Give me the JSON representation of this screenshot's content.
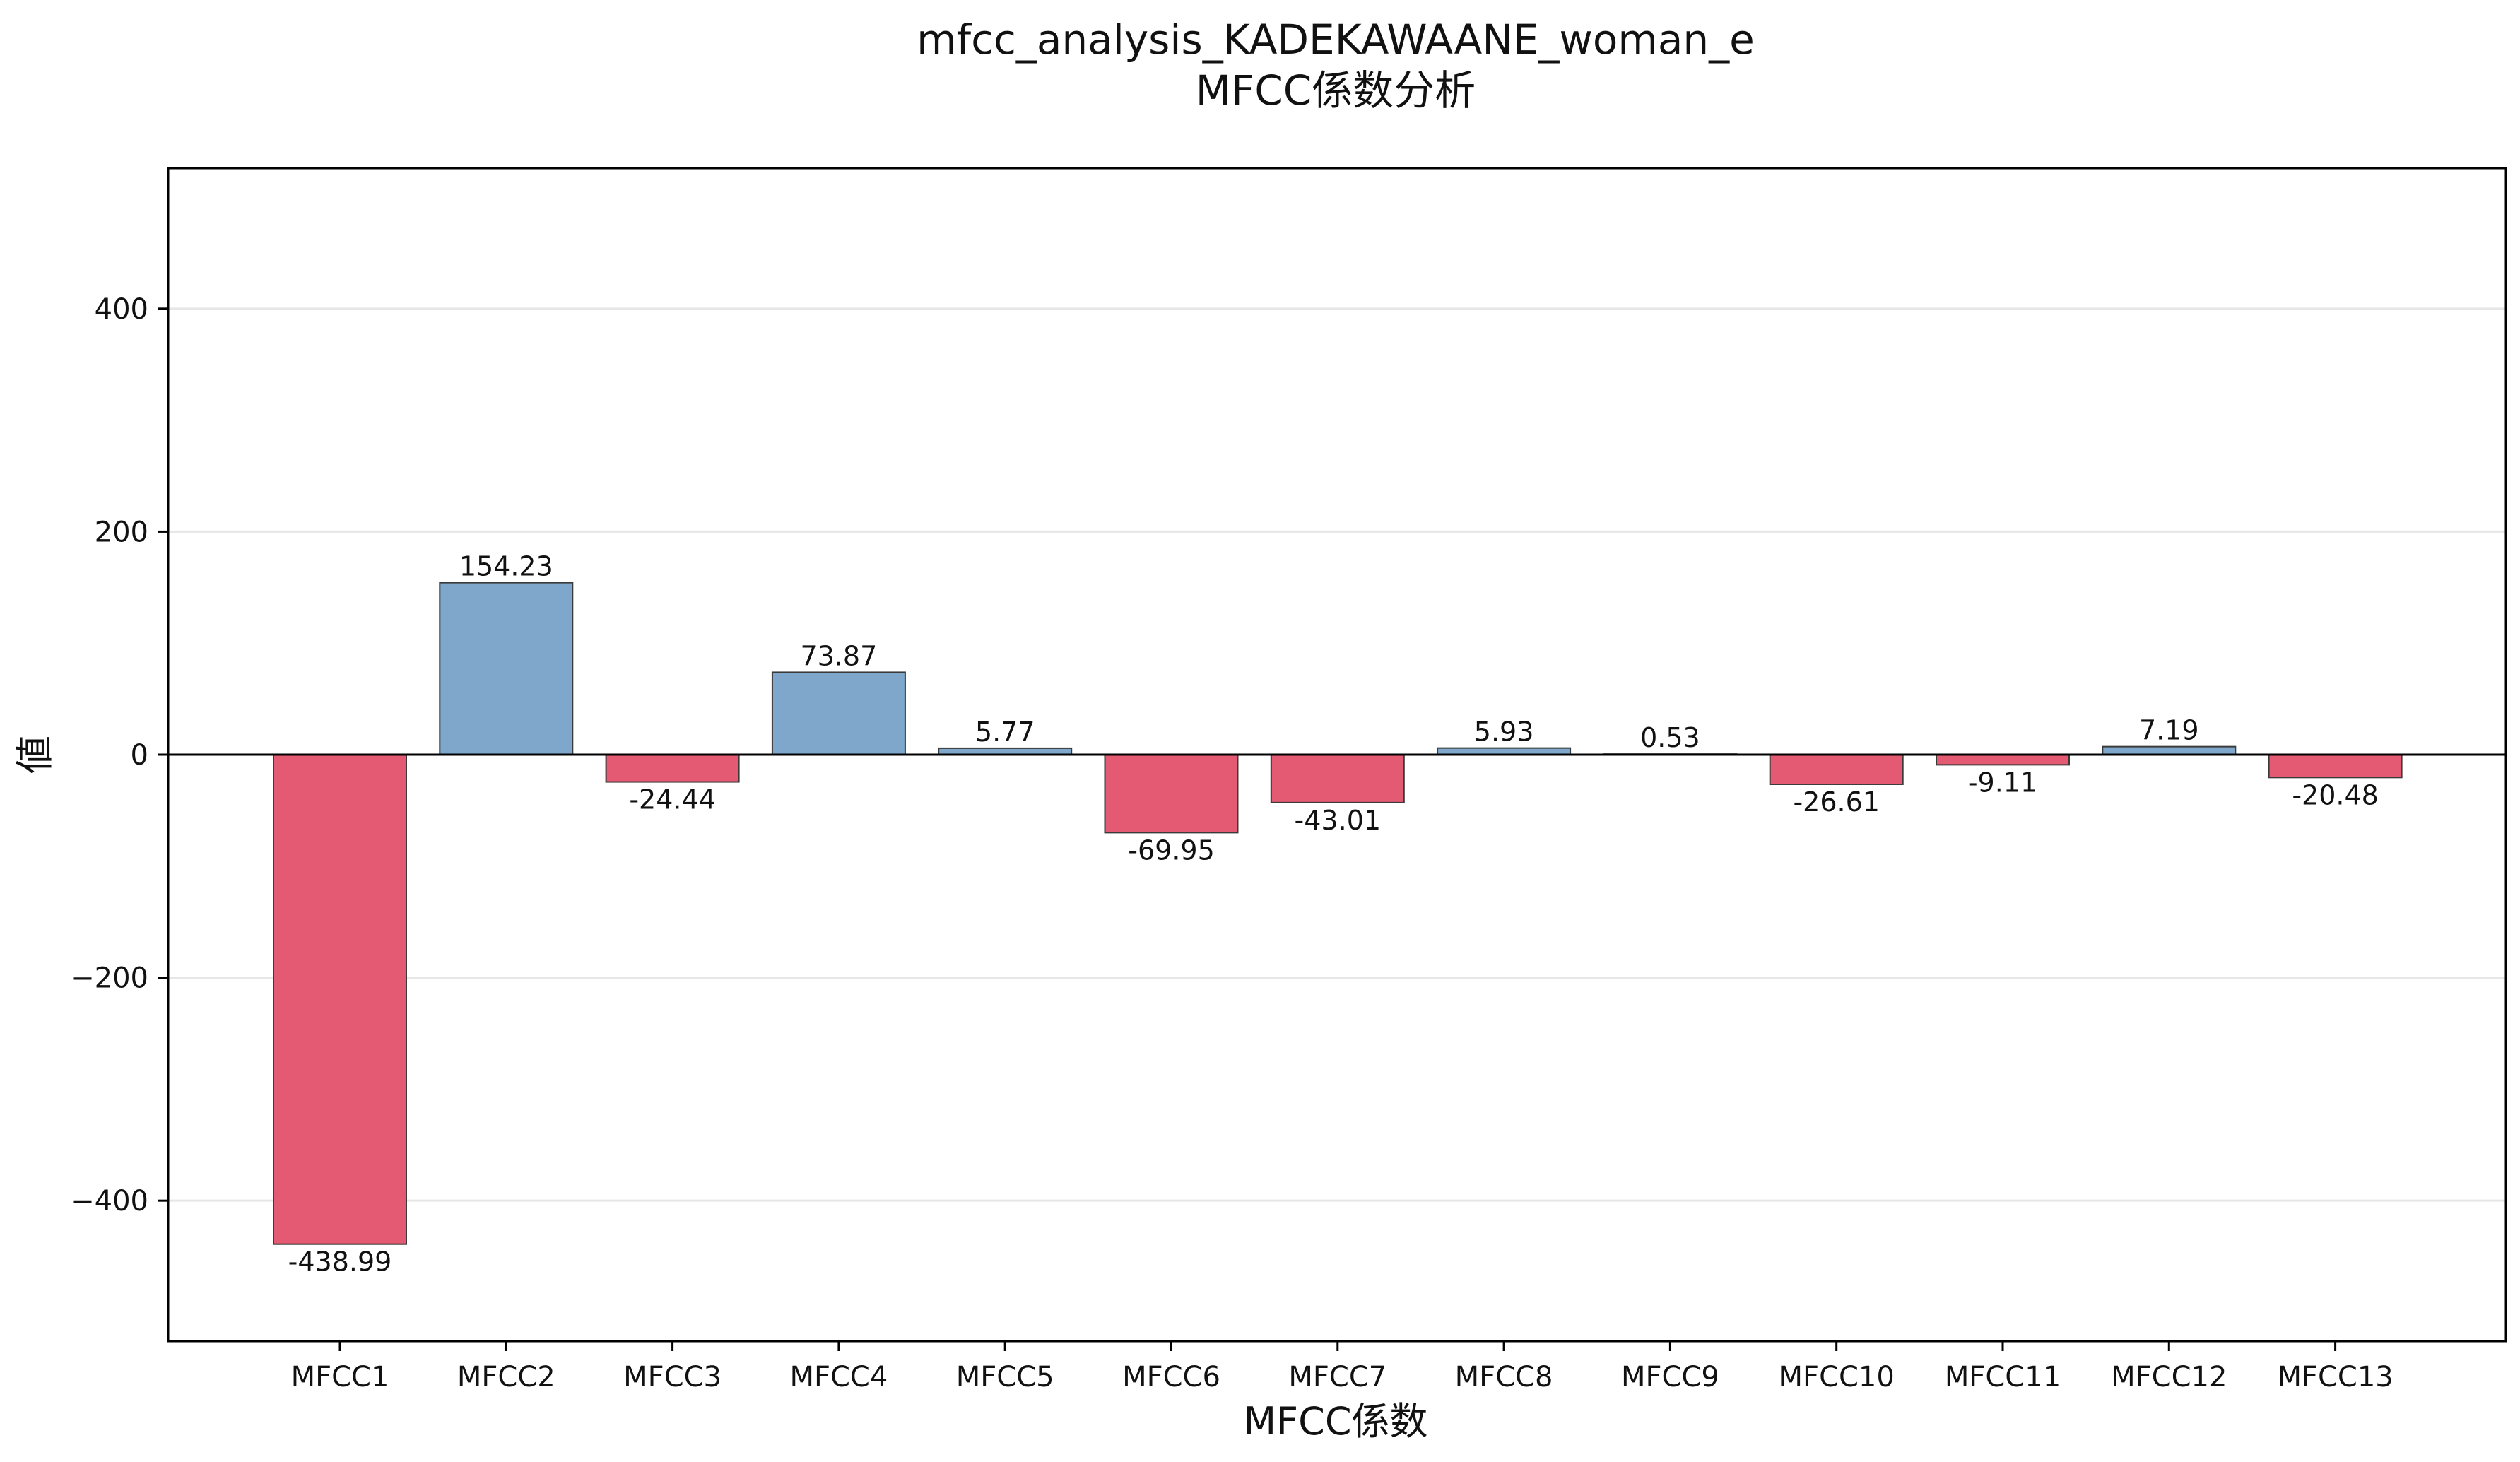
{
  "chart_data": {
    "type": "bar",
    "title": "mfcc_analysis_KADEKAWAANE_woman_e",
    "subtitle": "MFCC係数分析",
    "xlabel": "MFCC係数",
    "ylabel": "値",
    "categories": [
      "MFCC1",
      "MFCC2",
      "MFCC3",
      "MFCC4",
      "MFCC5",
      "MFCC6",
      "MFCC7",
      "MFCC8",
      "MFCC9",
      "MFCC10",
      "MFCC11",
      "MFCC12",
      "MFCC13"
    ],
    "values": [
      -438.99,
      154.23,
      -24.44,
      73.87,
      5.77,
      -69.95,
      -43.01,
      5.93,
      0.53,
      -26.61,
      -9.11,
      7.19,
      -20.48
    ],
    "value_labels": [
      "-438.99",
      "154.23",
      "-24.44",
      "73.87",
      "5.77",
      "-69.95",
      "-43.01",
      "5.93",
      "0.53",
      "-26.61",
      "-9.11",
      "7.19",
      "-20.48"
    ],
    "ylim": [
      -526,
      526
    ],
    "yticks": [
      -400,
      -200,
      0,
      200,
      400
    ],
    "ytick_labels": [
      "−400",
      "−200",
      "0",
      "200",
      "400"
    ],
    "grid": "horizontal",
    "colors": {
      "positive": "#7ea7cb",
      "negative": "#e55a73",
      "bar_edge": "#3a3a3a",
      "grid": "#e6e6e6",
      "zero_line": "#000000"
    }
  }
}
